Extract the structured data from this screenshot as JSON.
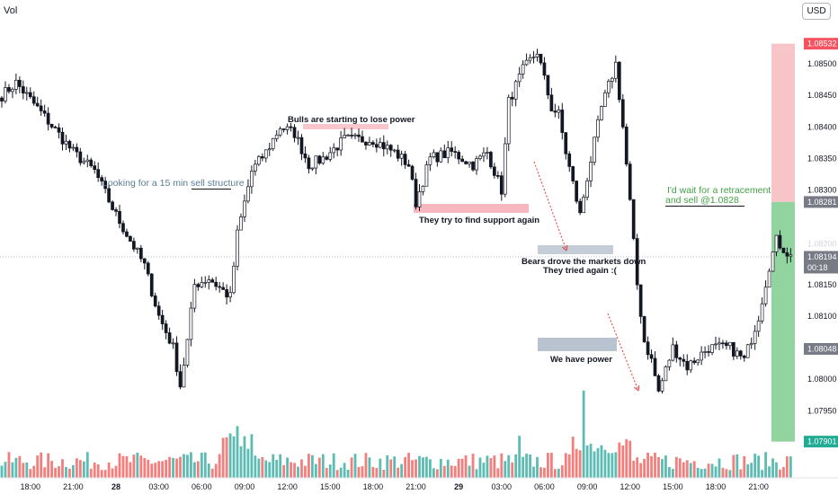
{
  "header": {
    "volume_label": "Vol",
    "currency_button": "USD"
  },
  "chart_data": {
    "type": "candlestick",
    "symbol_currency": "USD",
    "interval": "15 min",
    "y_axis": {
      "ticks": [
        1.085,
        1.0845,
        1.084,
        1.0835,
        1.083,
        1.0815,
        1.081,
        1.0805,
        1.08,
        1.0795
      ],
      "tick_labels": [
        "1.08500",
        "1.08450",
        "1.08400",
        "1.08350",
        "1.08300",
        "1.08150",
        "1.08100",
        "1.08050",
        "1.08000",
        "1.07950"
      ],
      "range": [
        1.07882,
        1.0856
      ]
    },
    "x_axis": {
      "ticks": [
        {
          "label": "18:00",
          "i": 8
        },
        {
          "label": "21:00",
          "i": 20
        },
        {
          "label": "28",
          "i": 32
        },
        {
          "label": "03:00",
          "i": 44
        },
        {
          "label": "06:00",
          "i": 56
        },
        {
          "label": "09:00",
          "i": 68
        },
        {
          "label": "12:00",
          "i": 80
        },
        {
          "label": "15:00",
          "i": 92
        },
        {
          "label": "18:00",
          "i": 104
        },
        {
          "label": "21:00",
          "i": 116
        },
        {
          "label": "29",
          "i": 128
        },
        {
          "label": "03:00",
          "i": 140
        },
        {
          "label": "06:00",
          "i": 152
        },
        {
          "label": "09:00",
          "i": 164
        },
        {
          "label": "12:00",
          "i": 176
        },
        {
          "label": "15:00",
          "i": 188
        },
        {
          "label": "18:00",
          "i": 200
        },
        {
          "label": "21:00",
          "i": 212
        }
      ]
    },
    "price_labels": {
      "stop": {
        "value": "1.08532",
        "price": 1.08532,
        "color": "#f7525f"
      },
      "entry": {
        "value": "1.08281",
        "price": 1.08281,
        "color": "#787b86"
      },
      "current": {
        "value": "1.08194",
        "price": 1.08194,
        "countdown": "00:18",
        "color": "#787b86"
      },
      "hidden": {
        "value": "1.08200",
        "price": 1.082
      },
      "low_mark": {
        "value": "1.08048",
        "price": 1.08048,
        "color": "#787b86"
      },
      "target": {
        "value": "1.07901",
        "price": 1.07901,
        "color": "#22ab94"
      }
    },
    "annotations": [
      {
        "text": "Looking for a 15 min sell structure",
        "color": "#5a7d95"
      },
      {
        "text": "Bulls are starting to lose power",
        "color": "#131722"
      },
      {
        "text": "They try to find support again",
        "color": "#131722"
      },
      {
        "text": "Bears drove the markets down",
        "color": "#131722"
      },
      {
        "text": "They tried again :(",
        "color": "#131722"
      },
      {
        "text": "We have power",
        "color": "#131722"
      },
      {
        "text": "I'd wait for a retracement",
        "color": "#43a047"
      },
      {
        "text": "and sell @1.0828",
        "color": "#43a047"
      }
    ],
    "colors": {
      "up": "#ffffff",
      "down": "#131722",
      "vol_up": "#26a69a",
      "vol_down": "#ef5350"
    }
  }
}
